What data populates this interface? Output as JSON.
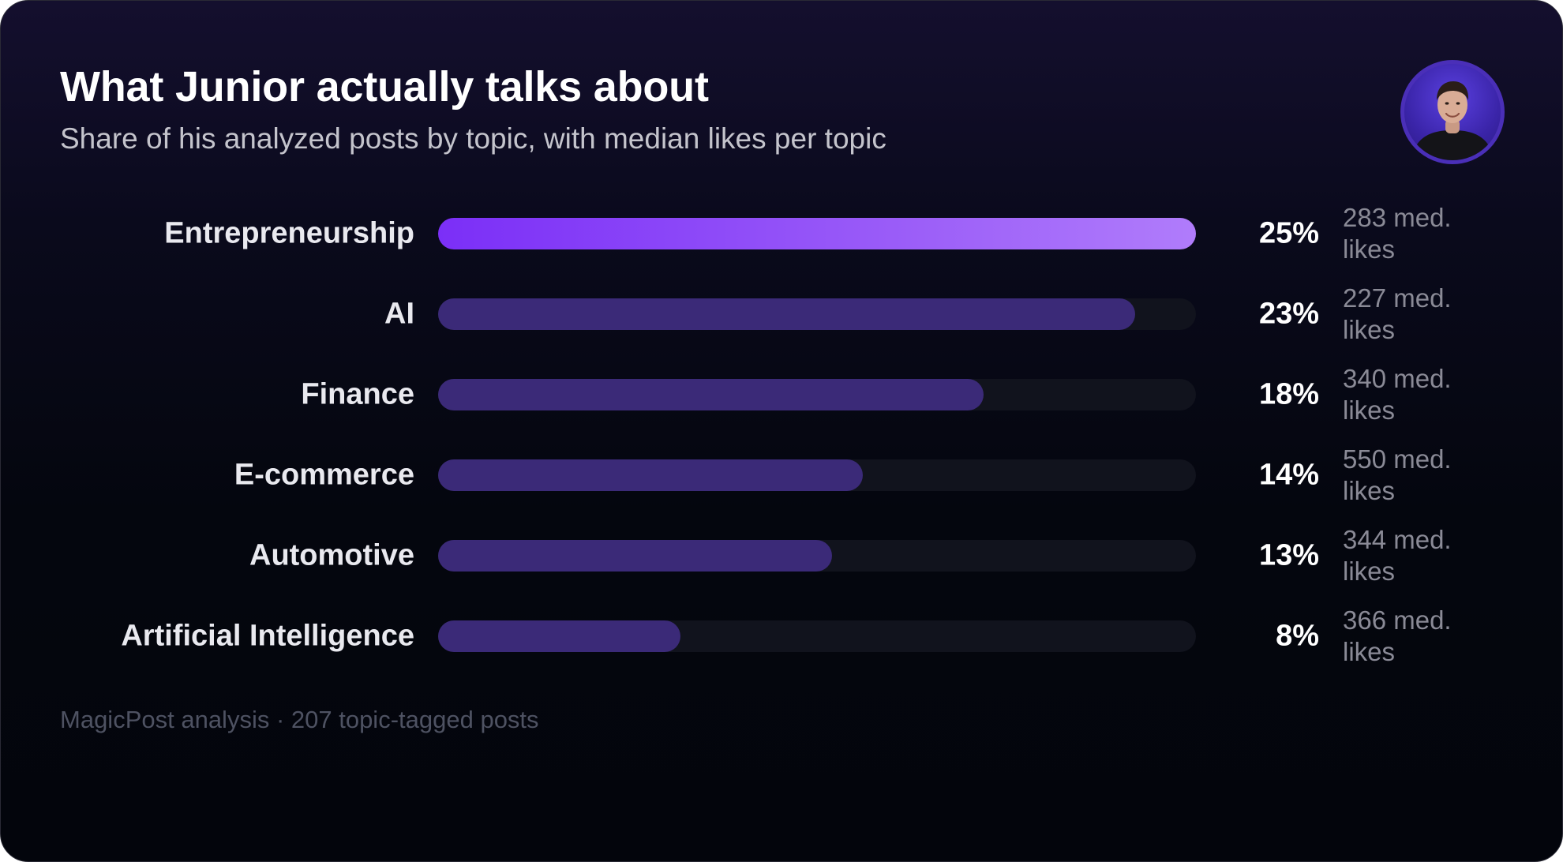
{
  "header": {
    "title": "What Junior actually talks about",
    "subtitle": "Share of his analyzed posts by topic, with median likes per topic"
  },
  "avatar": {
    "icon": "person-avatar-icon",
    "ring_color": "#4a2fb8"
  },
  "chart_data": {
    "type": "bar",
    "orientation": "horizontal",
    "categories": [
      "Entrepreneurship",
      "AI",
      "Finance",
      "E-commerce",
      "Automotive",
      "Artificial Intelligence"
    ],
    "values": [
      25,
      23,
      18,
      14,
      13,
      8
    ],
    "value_labels": [
      "25%",
      "23%",
      "18%",
      "14%",
      "13%",
      "8%"
    ],
    "median_likes_labels": [
      "283 med. likes",
      "227 med. likes",
      "340 med. likes",
      "550 med. likes",
      "344 med. likes",
      "366 med. likes"
    ],
    "median_likes": [
      283,
      227,
      340,
      550,
      344,
      366
    ],
    "title": "What Junior actually talks about",
    "subtitle": "Share of his analyzed posts by topic, with median likes per topic",
    "xlim": [
      0,
      25
    ],
    "grid": false,
    "colors": {
      "top_bar_gradient": [
        "#7b2ff7",
        "#b07cfb"
      ],
      "bar": "#3b2a78",
      "track": "#11131d"
    }
  },
  "footer": {
    "text": "MagicPost analysis · 207 topic-tagged posts"
  }
}
